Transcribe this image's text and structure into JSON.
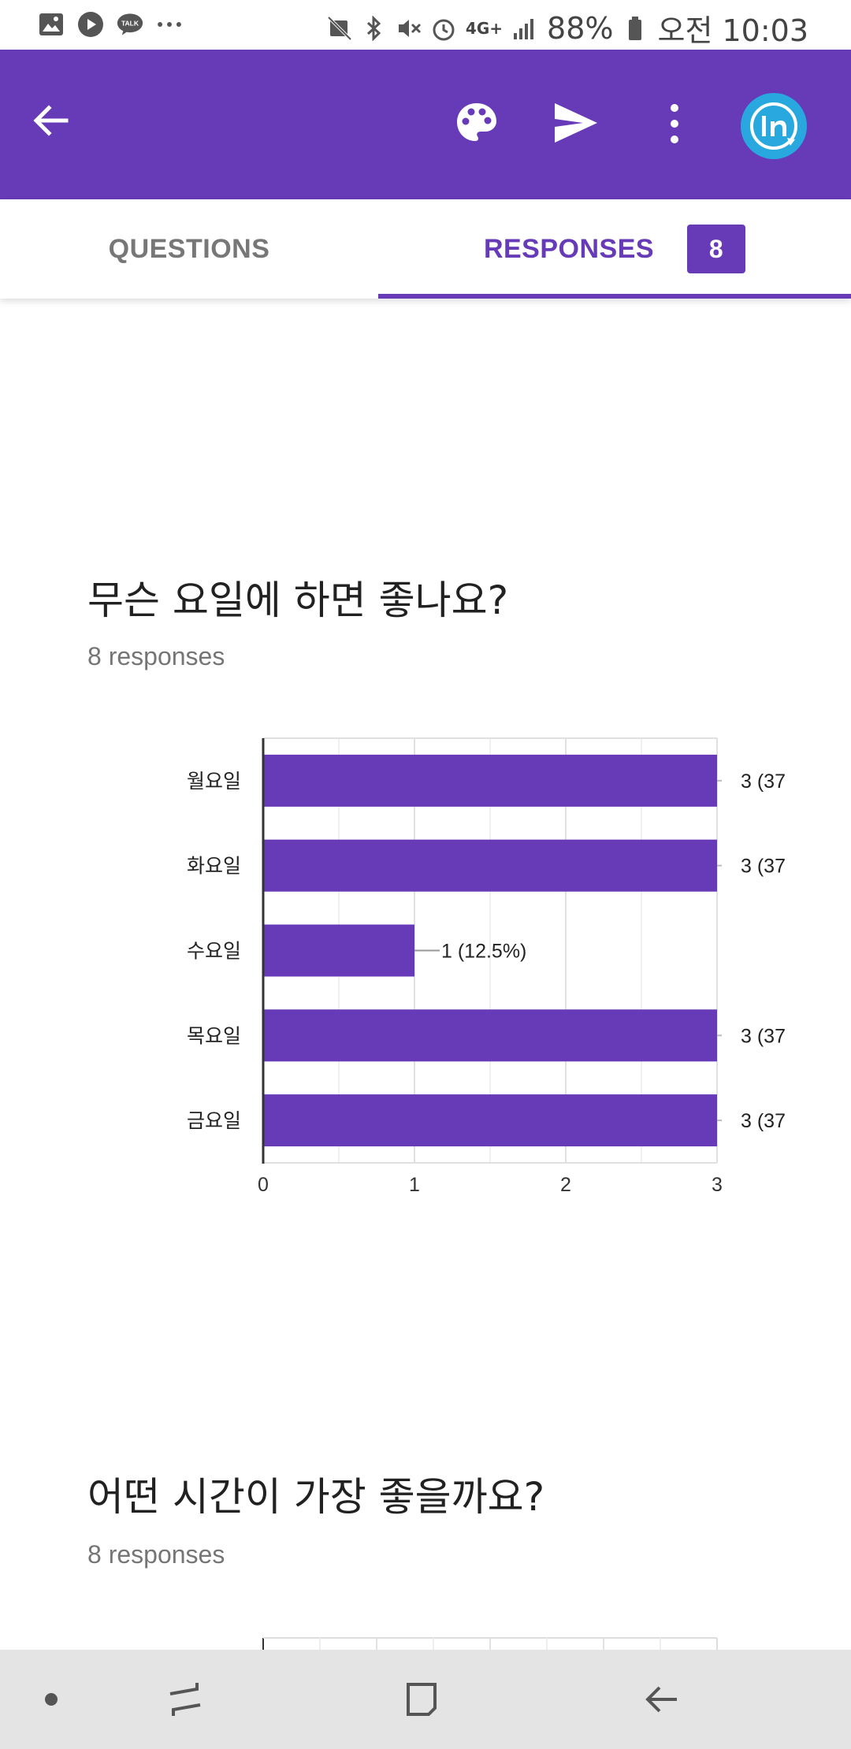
{
  "status_bar": {
    "battery": "88%",
    "time": "오전 10:03",
    "network": "4G+",
    "left_icons": [
      "gallery-icon",
      "play-icon",
      "talk-icon",
      "more-dots-icon"
    ],
    "talk_label": "TALK",
    "right_icons": [
      "sync-off-icon",
      "bluetooth-icon",
      "mute-icon",
      "alarm-icon",
      "signal-icon",
      "battery-icon"
    ]
  },
  "app_bar": {
    "color": "#673ab7",
    "icons": [
      "back-arrow-icon",
      "palette-icon",
      "send-icon",
      "more-vert-icon",
      "avatar"
    ]
  },
  "tabs": {
    "questions_label": "QUESTIONS",
    "responses_label": "RESPONSES",
    "responses_count": "8",
    "active": "RESPONSES"
  },
  "questions": [
    {
      "title": "무슨 요일에 하면 좋나요?",
      "responses": "8 responses"
    },
    {
      "title": "어떤 시간이 가장 좋을까요?",
      "responses": "8 responses"
    }
  ],
  "chart_data": {
    "type": "bar",
    "orientation": "horizontal",
    "categories": [
      "월요일",
      "화요일",
      "수요일",
      "목요일",
      "금요일"
    ],
    "values": [
      3,
      3,
      1,
      3,
      3
    ],
    "data_labels": [
      "3 (37",
      "3 (37",
      "1 (12.5%)",
      "3 (37",
      "3 (37"
    ],
    "xlim": [
      0,
      3
    ],
    "x_ticks": [
      "0",
      "1",
      "2",
      "3"
    ],
    "grid": true,
    "bar_color": "#673ab7"
  },
  "nav_bar": {
    "icons": [
      "dot-icon",
      "recent-apps-icon",
      "home-icon",
      "nav-back-icon"
    ]
  }
}
